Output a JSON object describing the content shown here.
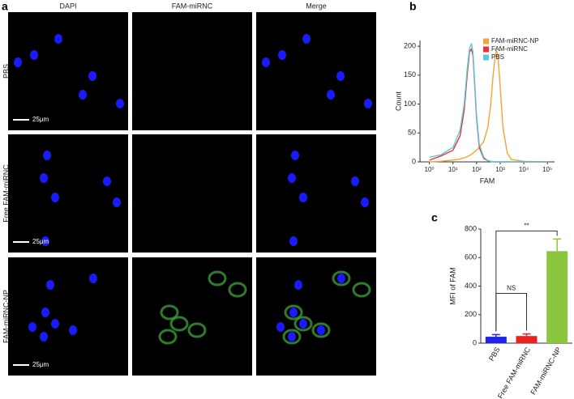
{
  "panel_a": {
    "label": "a",
    "columns": [
      "DAPI",
      "FAM-miRNC",
      "Merge"
    ],
    "rows": [
      "PBS",
      "Free FAM-miRNC",
      "FAM-miRNC-NP"
    ],
    "scale_bar": "25μm"
  },
  "chart_data": [
    {
      "type": "line",
      "panel_label": "b",
      "x_label": "FAM",
      "y_label": "Count",
      "xscale": "log",
      "x": [
        1,
        3,
        10,
        20,
        30,
        40,
        50,
        60,
        70,
        80,
        100,
        130,
        200,
        300,
        400,
        500,
        600,
        700,
        800,
        1000,
        1300,
        2000,
        3000,
        10000,
        100000
      ],
      "series": [
        {
          "name": "FAM-miRNC-NP",
          "color": "#f7a136",
          "values": [
            0,
            1,
            3,
            5,
            7,
            9,
            11,
            13,
            15,
            17,
            20,
            25,
            35,
            60,
            100,
            150,
            180,
            193,
            185,
            130,
            60,
            15,
            4,
            1,
            0
          ]
        },
        {
          "name": "FAM-miRNC",
          "color": "#e8313a",
          "values": [
            3,
            10,
            20,
            45,
            90,
            150,
            190,
            195,
            185,
            145,
            75,
            25,
            6,
            2,
            1,
            0,
            0,
            0,
            0,
            0,
            0,
            0,
            0,
            0,
            0
          ]
        },
        {
          "name": "PBS",
          "color": "#5bc8d8",
          "values": [
            8,
            12,
            25,
            55,
            100,
            160,
            195,
            205,
            190,
            150,
            80,
            30,
            8,
            2,
            1,
            0,
            0,
            0,
            0,
            0,
            0,
            0,
            0,
            0,
            0
          ]
        }
      ],
      "xlim": [
        0.4,
        200000
      ],
      "xticks": [
        {
          "value": 1,
          "label": "10⁰"
        },
        {
          "value": 10,
          "label": "10¹"
        },
        {
          "value": 100,
          "label": "10²"
        },
        {
          "value": 1000,
          "label": "10³"
        },
        {
          "value": 10000,
          "label": "10⁴"
        },
        {
          "value": 100000,
          "label": "10⁵"
        }
      ],
      "ylim": [
        0,
        210
      ],
      "yticks": [
        0,
        50,
        100,
        150,
        200
      ],
      "legend": "upper right"
    },
    {
      "type": "bar",
      "panel_label": "c",
      "y_label": "MFI of FAM",
      "categories": [
        "PBS",
        "Free FAM-miRNC",
        "FAM-miRNC-NP"
      ],
      "values": [
        45,
        50,
        645
      ],
      "errors": [
        15,
        15,
        85
      ],
      "colors": [
        "#1f24e6",
        "#e8231f",
        "#8cc63f"
      ],
      "ylim": [
        0,
        800
      ],
      "yticks": [
        0,
        200,
        400,
        600,
        800
      ],
      "annotations": [
        {
          "text": "NS",
          "between": [
            0,
            1
          ]
        },
        {
          "text": "**",
          "between": [
            0,
            2
          ]
        }
      ]
    }
  ]
}
